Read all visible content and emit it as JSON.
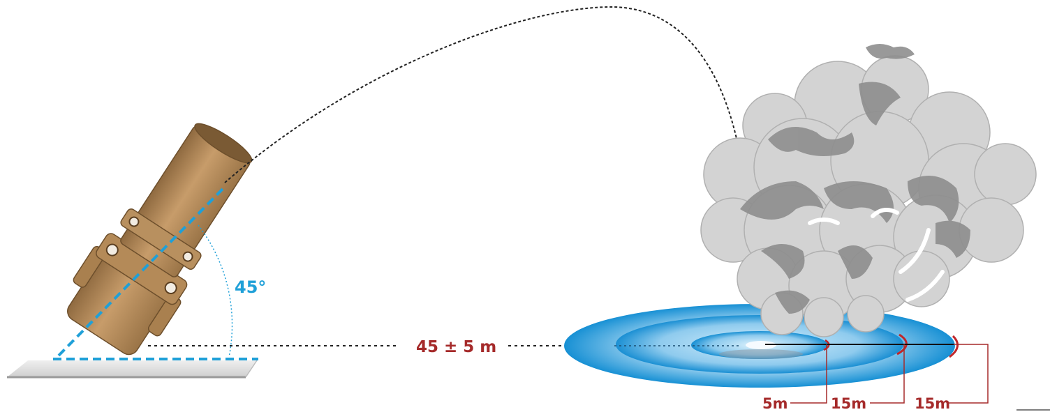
{
  "colors": {
    "blue_accent": "#1fa0d8",
    "label_red": "#a52a2a",
    "tube_bronze": "#b0875a",
    "smoke_light": "#cfcfcf",
    "smoke_dark": "#8e8e8e",
    "zone_blue": "#1e90d6",
    "trajectory": "#222222"
  },
  "diagram": {
    "launch_angle": "45°",
    "distance": "45 ± 5 m",
    "zones": [
      {
        "label": "5m"
      },
      {
        "label": "15m"
      },
      {
        "label": "15m"
      }
    ]
  },
  "icons": {
    "launcher": "mortar-tube-icon",
    "smoke": "smoke-cloud-icon"
  }
}
